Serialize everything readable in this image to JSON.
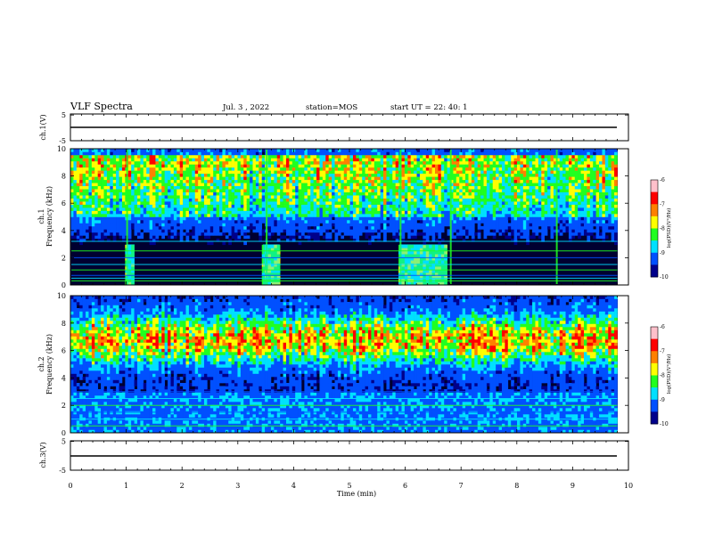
{
  "header": {
    "title": "VLF Spectra",
    "date": "Jul. 3 , 2022",
    "station": "station=MOS",
    "start": "start UT = 22: 40: 1"
  },
  "colors": {
    "dark": "#000030",
    "navy": "#00008b",
    "blue": "#0050ff",
    "cyan": "#00e0ff",
    "green": "#20ff20",
    "yellow": "#ffff00",
    "orange": "#ff8000",
    "red": "#ff0000",
    "pink": "#ffc0cb"
  },
  "chart_data": [
    {
      "type": "line",
      "panel": "ch1-waveform",
      "ylabel": "ch.1(V)",
      "ylim": [
        -5,
        5
      ],
      "yticks": [
        "5",
        "-5"
      ],
      "series": [
        {
          "x": [
            0,
            9.8
          ],
          "values": [
            0,
            0
          ]
        }
      ]
    },
    {
      "type": "heatmap",
      "panel": "ch1-spectrogram",
      "ylabel": [
        "ch.1",
        "Frequency (kHz)"
      ],
      "ylim": [
        0,
        10
      ],
      "yticks": [
        "0",
        "2",
        "4",
        "6",
        "8",
        "10"
      ],
      "colorbar": {
        "label": "log(PSD)(V²/Hz)",
        "ticks": [
          "-6",
          "-7",
          "-8",
          "-9",
          "-10"
        ],
        "range": [
          -10,
          -6
        ]
      },
      "x_extent": [
        0,
        9.8
      ],
      "hum_lines_khz": [
        0.3,
        0.5,
        0.7,
        1.1,
        1.5,
        2.0,
        2.5,
        3.2
      ],
      "broadband_bursts_min": [
        1.0,
        3.5,
        5.9,
        6.8,
        8.7
      ],
      "wide_events_min": [
        [
          1.0,
          1.15
        ],
        [
          3.45,
          3.75
        ],
        [
          5.9,
          6.75
        ]
      ]
    },
    {
      "type": "heatmap",
      "panel": "ch2-spectrogram",
      "ylabel": [
        "ch.2",
        "Frequency (kHz)"
      ],
      "ylim": [
        0,
        10
      ],
      "yticks": [
        "0",
        "2",
        "4",
        "6",
        "8",
        "10"
      ],
      "colorbar": {
        "label": "log(PSD)(V²/Hz)",
        "ticks": [
          "-6",
          "-7",
          "-8",
          "-9",
          "-10"
        ],
        "range": [
          -10,
          -6
        ]
      },
      "x_extent": [
        0,
        9.8
      ],
      "band_center_khz": 6.8,
      "hum_lines_khz": [
        0.5,
        1.0,
        1.5,
        2.0,
        2.5,
        3.0
      ]
    },
    {
      "type": "line",
      "panel": "ch3-waveform",
      "ylabel": "ch.3(V)",
      "ylim": [
        -5,
        5
      ],
      "yticks": [
        "5",
        "-5"
      ],
      "series": [
        {
          "x": [
            0,
            9.8
          ],
          "values": [
            0,
            0
          ]
        }
      ]
    }
  ],
  "xaxis": {
    "label": "Time (min)",
    "ticks": [
      "0",
      "1",
      "2",
      "3",
      "4",
      "5",
      "6",
      "7",
      "8",
      "9",
      "10"
    ],
    "range": [
      0,
      10
    ]
  }
}
